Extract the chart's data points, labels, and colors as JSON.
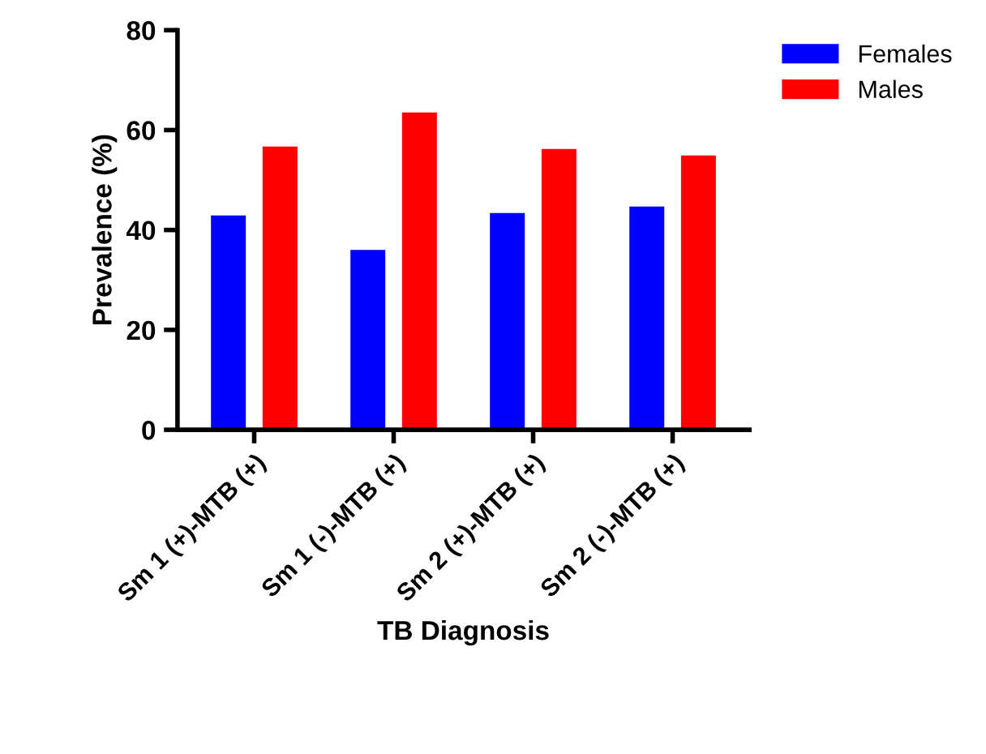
{
  "chart_data": {
    "type": "bar",
    "xlabel": "TB Diagnosis",
    "ylabel": "Prevalence (%)",
    "categories": [
      "Sm 1 (+)-MTB (+)",
      "Sm 1 (-)-MTB (+)",
      "Sm 2 (+)-MTB (+)",
      "Sm 2 (-)-MTB (+)"
    ],
    "series": [
      {
        "name": "Females",
        "color": "#0000ff",
        "values": [
          42.9,
          36.0,
          43.4,
          44.7
        ]
      },
      {
        "name": "Males",
        "color": "#ff0000",
        "values": [
          56.7,
          63.5,
          56.2,
          54.9
        ]
      }
    ],
    "ylim": [
      0,
      80
    ],
    "yticks": [
      0,
      20,
      40,
      60,
      80
    ],
    "grid": false,
    "legend": "top right"
  }
}
